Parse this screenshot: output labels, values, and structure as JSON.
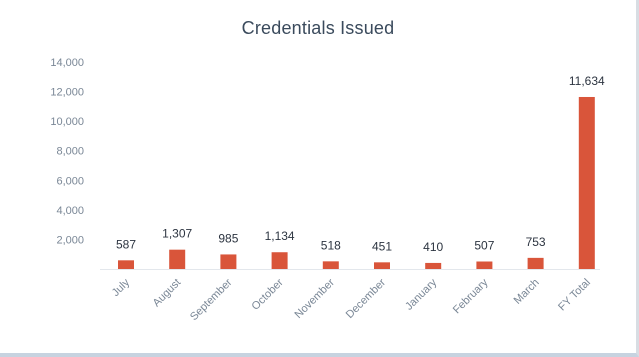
{
  "chart_data": {
    "type": "bar",
    "title": "Credentials Issued",
    "categories": [
      "July",
      "August",
      "September",
      "October",
      "November",
      "December",
      "January",
      "February",
      "March",
      "FY Total"
    ],
    "values": [
      587,
      1307,
      985,
      1134,
      518,
      451,
      410,
      507,
      753,
      11634
    ],
    "value_labels": [
      "587",
      "1,307",
      "985",
      "1,134",
      "518",
      "451",
      "410",
      "507",
      "753",
      "11,634"
    ],
    "yticks": [
      {
        "value": 2000,
        "label": "2,000"
      },
      {
        "value": 4000,
        "label": "4,000"
      },
      {
        "value": 6000,
        "label": "6,000"
      },
      {
        "value": 8000,
        "label": "8,000"
      },
      {
        "value": 10000,
        "label": "10,000"
      },
      {
        "value": 12000,
        "label": "12,000"
      },
      {
        "value": 14000,
        "label": "14,000"
      }
    ],
    "ylim": [
      0,
      14000
    ],
    "grid": false,
    "legend": "none",
    "bar_color": "#d9553a"
  }
}
